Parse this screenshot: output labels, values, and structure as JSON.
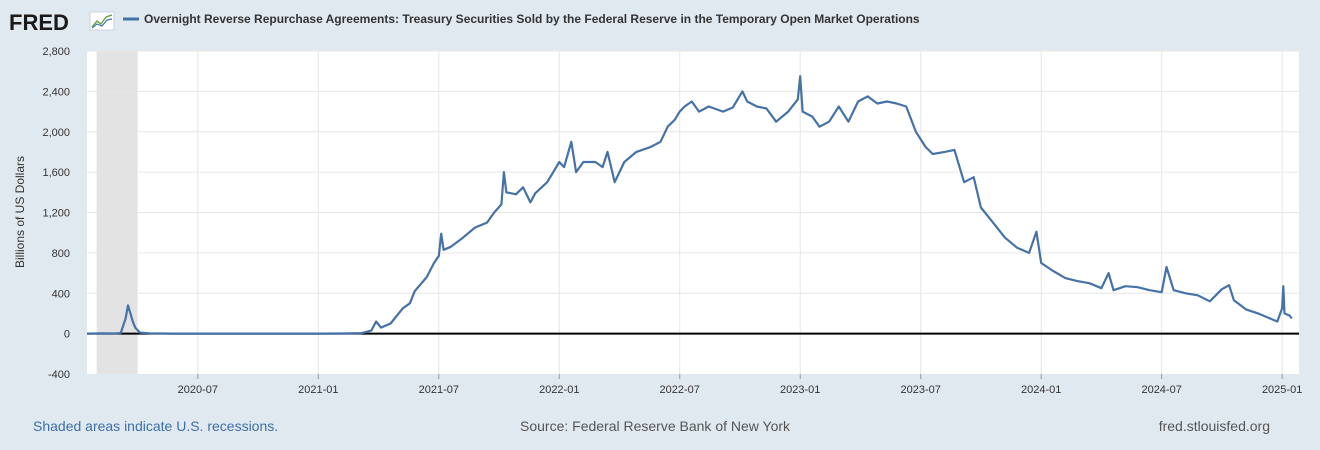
{
  "brand": {
    "name": "FRED"
  },
  "colors": {
    "series": "#4572a7",
    "recession": "#e3e3e3",
    "zero_line": "#000000",
    "grid": "#e6e6e6"
  },
  "footer": {
    "recession_note": "Shaded areas indicate U.S. recessions.",
    "source": "Source: Federal Reserve Bank of New York",
    "site": "fred.stlouisfed.org"
  },
  "chart_data": {
    "type": "line",
    "title": "Overnight Reverse Repurchase Agreements: Treasury Securities Sold by the Federal Reserve in the Temporary Open Market Operations",
    "xlabel": "",
    "ylabel": "Billions of US Dollars",
    "ylim": [
      -400,
      2800
    ],
    "yticks": [
      -400,
      0,
      400,
      800,
      1200,
      1600,
      2000,
      2400,
      2800
    ],
    "ytick_labels": [
      "-400",
      "0",
      "400",
      "800",
      "1,200",
      "1,600",
      "2,000",
      "2,400",
      "2,800"
    ],
    "xlim": [
      2020.04,
      2025.07
    ],
    "xticks": [
      2020.5,
      2021.0,
      2021.5,
      2022.0,
      2022.5,
      2023.0,
      2023.5,
      2024.0,
      2024.5,
      2025.0
    ],
    "xtick_labels": [
      "2020-07",
      "2021-01",
      "2021-07",
      "2022-01",
      "2022-07",
      "2023-01",
      "2023-07",
      "2024-01",
      "2024-07",
      "2025-01"
    ],
    "recessions": [
      {
        "start": 2020.08,
        "end": 2020.25
      }
    ],
    "series": [
      {
        "name": "Overnight Reverse Repurchase Agreements",
        "points": [
          [
            2020.04,
            0
          ],
          [
            2020.1,
            2
          ],
          [
            2020.15,
            1
          ],
          [
            2020.18,
            5
          ],
          [
            2020.2,
            150
          ],
          [
            2020.21,
            280
          ],
          [
            2020.22,
            200
          ],
          [
            2020.23,
            120
          ],
          [
            2020.24,
            60
          ],
          [
            2020.26,
            10
          ],
          [
            2020.3,
            3
          ],
          [
            2020.4,
            0
          ],
          [
            2020.6,
            0
          ],
          [
            2020.8,
            0
          ],
          [
            2021.0,
            0
          ],
          [
            2021.1,
            1
          ],
          [
            2021.18,
            5
          ],
          [
            2021.22,
            30
          ],
          [
            2021.24,
            120
          ],
          [
            2021.26,
            60
          ],
          [
            2021.3,
            100
          ],
          [
            2021.35,
            250
          ],
          [
            2021.38,
            300
          ],
          [
            2021.4,
            420
          ],
          [
            2021.45,
            560
          ],
          [
            2021.48,
            700
          ],
          [
            2021.5,
            770
          ],
          [
            2021.51,
            990
          ],
          [
            2021.52,
            830
          ],
          [
            2021.55,
            860
          ],
          [
            2021.6,
            950
          ],
          [
            2021.65,
            1050
          ],
          [
            2021.7,
            1100
          ],
          [
            2021.73,
            1200
          ],
          [
            2021.76,
            1280
          ],
          [
            2021.77,
            1600
          ],
          [
            2021.78,
            1400
          ],
          [
            2021.82,
            1380
          ],
          [
            2021.85,
            1450
          ],
          [
            2021.88,
            1300
          ],
          [
            2021.9,
            1390
          ],
          [
            2021.95,
            1500
          ],
          [
            2022.0,
            1700
          ],
          [
            2022.02,
            1650
          ],
          [
            2022.05,
            1900
          ],
          [
            2022.07,
            1600
          ],
          [
            2022.1,
            1700
          ],
          [
            2022.15,
            1700
          ],
          [
            2022.18,
            1650
          ],
          [
            2022.2,
            1800
          ],
          [
            2022.23,
            1500
          ],
          [
            2022.27,
            1700
          ],
          [
            2022.32,
            1800
          ],
          [
            2022.38,
            1850
          ],
          [
            2022.42,
            1900
          ],
          [
            2022.45,
            2050
          ],
          [
            2022.48,
            2120
          ],
          [
            2022.5,
            2200
          ],
          [
            2022.52,
            2250
          ],
          [
            2022.55,
            2300
          ],
          [
            2022.58,
            2200
          ],
          [
            2022.62,
            2250
          ],
          [
            2022.68,
            2200
          ],
          [
            2022.72,
            2240
          ],
          [
            2022.76,
            2400
          ],
          [
            2022.78,
            2300
          ],
          [
            2022.82,
            2250
          ],
          [
            2022.86,
            2230
          ],
          [
            2022.9,
            2100
          ],
          [
            2022.95,
            2200
          ],
          [
            2022.99,
            2320
          ],
          [
            2023.0,
            2550
          ],
          [
            2023.01,
            2200
          ],
          [
            2023.05,
            2150
          ],
          [
            2023.08,
            2050
          ],
          [
            2023.12,
            2100
          ],
          [
            2023.16,
            2250
          ],
          [
            2023.2,
            2100
          ],
          [
            2023.24,
            2300
          ],
          [
            2023.28,
            2350
          ],
          [
            2023.32,
            2280
          ],
          [
            2023.36,
            2300
          ],
          [
            2023.4,
            2280
          ],
          [
            2023.44,
            2250
          ],
          [
            2023.48,
            2000
          ],
          [
            2023.52,
            1850
          ],
          [
            2023.55,
            1780
          ],
          [
            2023.6,
            1800
          ],
          [
            2023.64,
            1820
          ],
          [
            2023.68,
            1500
          ],
          [
            2023.72,
            1550
          ],
          [
            2023.75,
            1250
          ],
          [
            2023.8,
            1100
          ],
          [
            2023.85,
            950
          ],
          [
            2023.9,
            850
          ],
          [
            2023.95,
            800
          ],
          [
            2023.98,
            1010
          ],
          [
            2024.0,
            700
          ],
          [
            2024.05,
            620
          ],
          [
            2024.1,
            550
          ],
          [
            2024.15,
            520
          ],
          [
            2024.2,
            500
          ],
          [
            2024.25,
            450
          ],
          [
            2024.28,
            600
          ],
          [
            2024.3,
            430
          ],
          [
            2024.35,
            470
          ],
          [
            2024.4,
            460
          ],
          [
            2024.45,
            430
          ],
          [
            2024.5,
            410
          ],
          [
            2024.52,
            660
          ],
          [
            2024.55,
            430
          ],
          [
            2024.6,
            400
          ],
          [
            2024.65,
            380
          ],
          [
            2024.7,
            320
          ],
          [
            2024.75,
            440
          ],
          [
            2024.78,
            480
          ],
          [
            2024.8,
            330
          ],
          [
            2024.85,
            240
          ],
          [
            2024.9,
            200
          ],
          [
            2024.95,
            150
          ],
          [
            2024.98,
            120
          ],
          [
            2025.0,
            250
          ],
          [
            2025.005,
            470
          ],
          [
            2025.01,
            200
          ],
          [
            2025.03,
            180
          ],
          [
            2025.04,
            150
          ]
        ]
      }
    ]
  }
}
